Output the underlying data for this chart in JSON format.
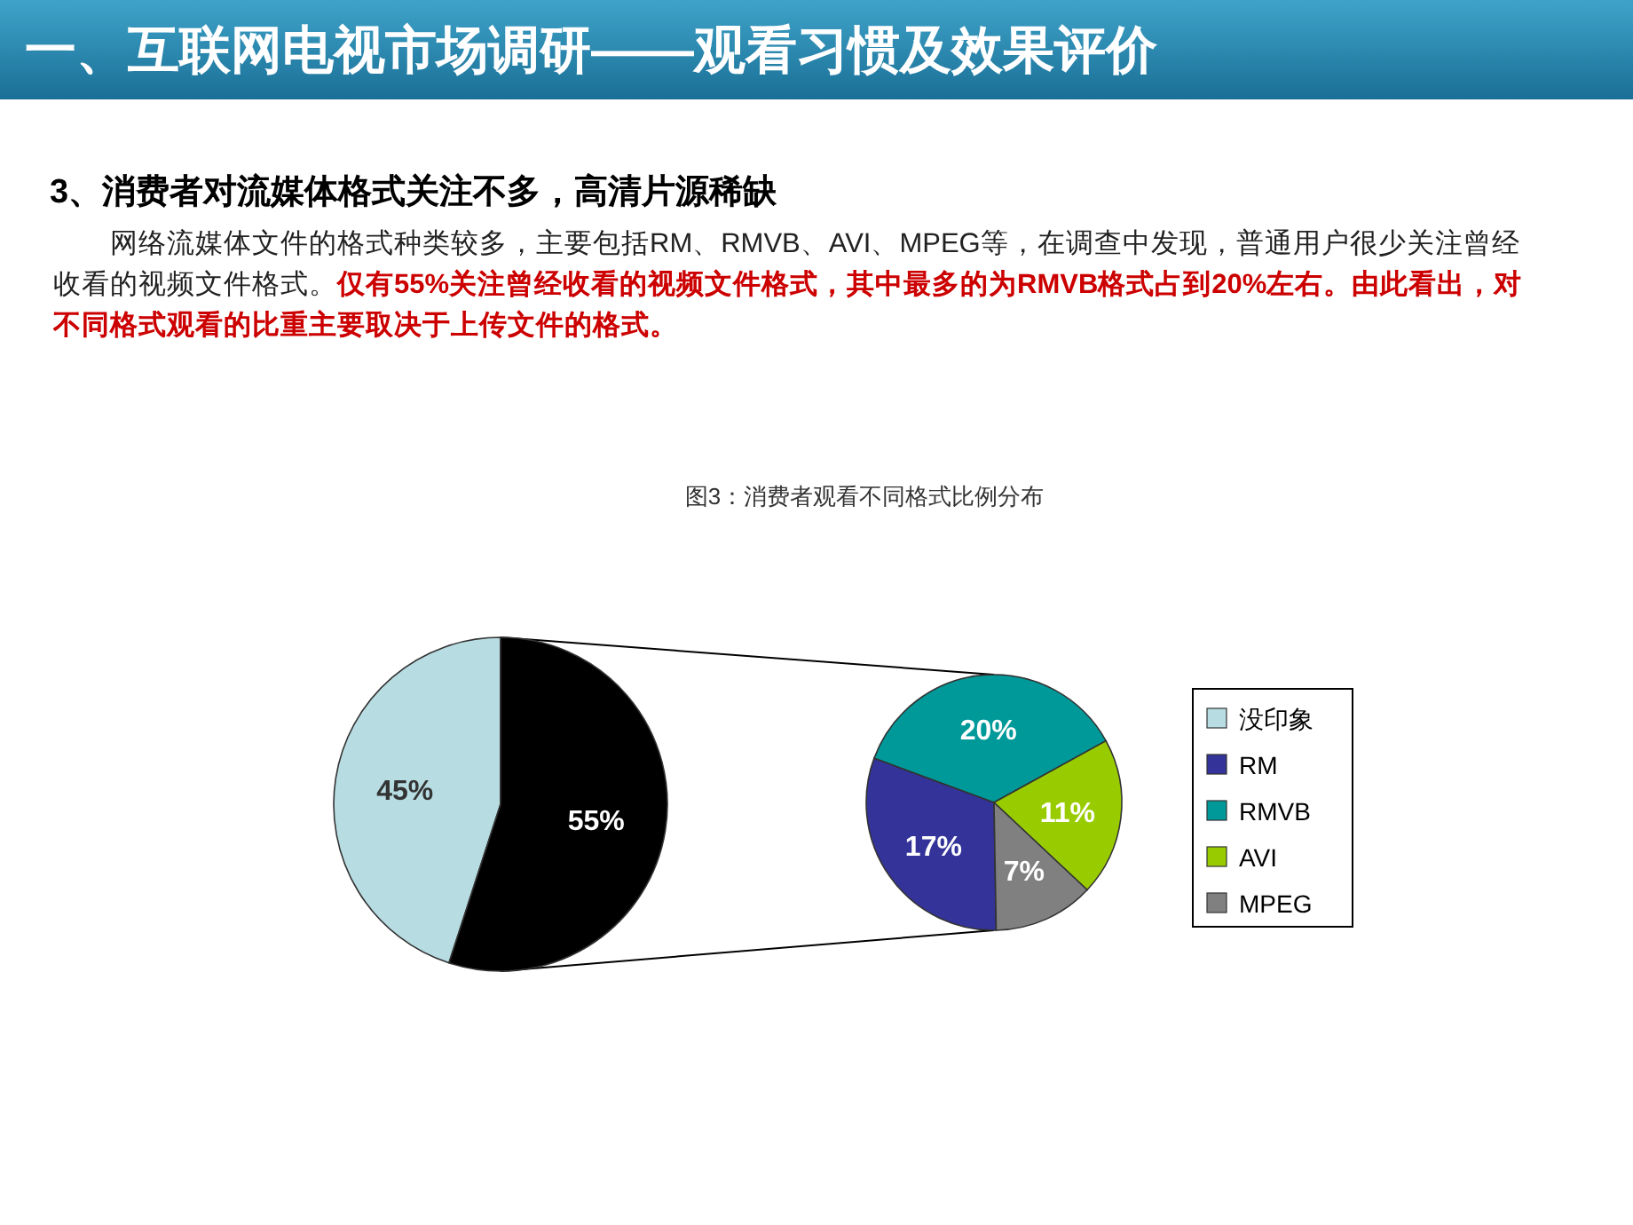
{
  "chart_data": [
    {
      "type": "pie",
      "title": "一、互联网电视市场调研——观看习惯及效果评价",
      "subtitle": "3、消费者对流媒体格式关注不多，高清片源稀缺",
      "annotations": [
        "网络流媒体文件的格式种类较多，主要包括RM、RMVB、AVI、MPEG等，在调查中发现，普通用户很少关注曾经收看的视频文件格式。",
        "仅有55%关注曾经收看的视频文件格式，其中最多的为RMVB格式占到20%左右。由此看出，对不同格式观看的比重主要取决于上传文件的格式。",
        "图3：消费者观看不同格式比例分布"
      ],
      "categories": [
        "没印象",
        null
      ],
      "values": [
        45,
        55
      ],
      "colors": [
        "#b7dde3",
        "#000000"
      ],
      "value_labels": [
        "45%",
        "55%"
      ],
      "legend": "right"
    },
    {
      "type": "pie",
      "categories": [
        "RM",
        "RMVB",
        "AVI",
        "MPEG"
      ],
      "values": [
        17,
        20,
        11,
        7
      ],
      "colors": [
        "#333399",
        "#009999",
        "#99cc00",
        "#808080"
      ],
      "value_labels": [
        "17%",
        "20%",
        "11%",
        "7%"
      ],
      "legend": "right"
    }
  ]
}
